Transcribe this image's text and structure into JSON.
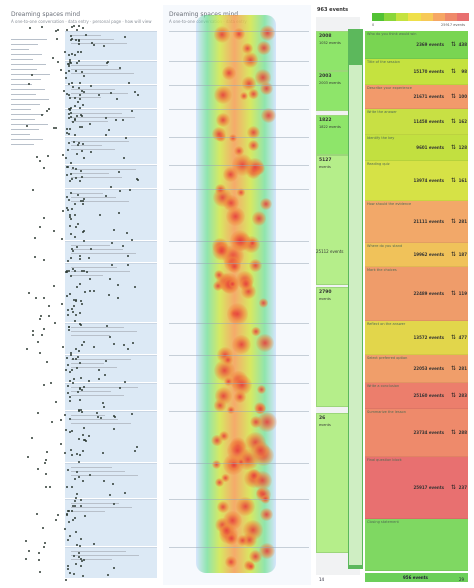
{
  "panel1": {
    "title": "Dreaming spaces mind",
    "subtitle": "A one-to-one conversation · data entry · personal page · how will view"
  },
  "panel2": {
    "title": "Dreaming spaces mind",
    "subtitle": "A one-to-one conversation · data entry"
  },
  "panel3": {
    "header_count": "963 events",
    "legend_start": "0",
    "legend_end": "25917 events",
    "legend_colors": [
      "#52c234",
      "#8ad63a",
      "#c5e23f",
      "#efe04a",
      "#f7c957",
      "#f6a764",
      "#ef8a6a",
      "#e87070"
    ],
    "left_col": [
      {
        "num": "2008",
        "count": "1052 events"
      },
      {
        "num": "2003",
        "count": "2003 events"
      },
      {
        "num": "1822",
        "count": "1822 events"
      },
      {
        "num": "5127",
        "count": "events"
      },
      {
        "num": "2790",
        "count": "events"
      },
      {
        "num": "26",
        "count": "events"
      }
    ],
    "middle_label": "25112 events",
    "rows": [
      {
        "label": "Who do you think would win",
        "events": "2369 events",
        "up": "438",
        "color": "#79d552"
      },
      {
        "label": "Title of the session",
        "events": "15170 events",
        "up": "98",
        "color": "#c5e23f"
      },
      {
        "label": "Describe your experience",
        "events": "21671 events",
        "up": "100",
        "color": "#f29a6b"
      },
      {
        "label": "Write the answer",
        "events": "11458 events",
        "up": "162",
        "color": "#c8e044"
      },
      {
        "label": "Identify the key",
        "events": "9601 events",
        "up": "128",
        "color": "#c2e040"
      },
      {
        "label": "Reading quiz",
        "events": "13974 events",
        "up": "161",
        "color": "#d6e246"
      },
      {
        "label": "How should the evidence",
        "events": "21111 events",
        "up": "281",
        "color": "#f2a869"
      },
      {
        "label": "Where do you stand",
        "events": "19962 events",
        "up": "187",
        "color": "#f0c25a"
      },
      {
        "label": "Mark the choices",
        "events": "22489 events",
        "up": "119",
        "color": "#ef9c6a"
      },
      {
        "label": "Reflect on the answer",
        "events": "13572 events",
        "up": "477",
        "color": "#e2d64b"
      },
      {
        "label": "Select preferred option",
        "events": "22053 events",
        "up": "281",
        "color": "#f09e6a"
      },
      {
        "label": "Write a conclusion",
        "events": "25160 events",
        "up": "283",
        "color": "#ec7e6c"
      },
      {
        "label": "Summarize the lesson",
        "events": "23734 events",
        "up": "288",
        "color": "#ee8a6b"
      },
      {
        "label": "Final question block",
        "events": "25917 events",
        "up": "237",
        "color": "#e87070"
      },
      {
        "label": "Closing statement",
        "events": "",
        "up": "",
        "color": "#7fd862"
      }
    ],
    "bottom_left": "14",
    "bottom_count": "956 events",
    "bottom_right": "29"
  }
}
